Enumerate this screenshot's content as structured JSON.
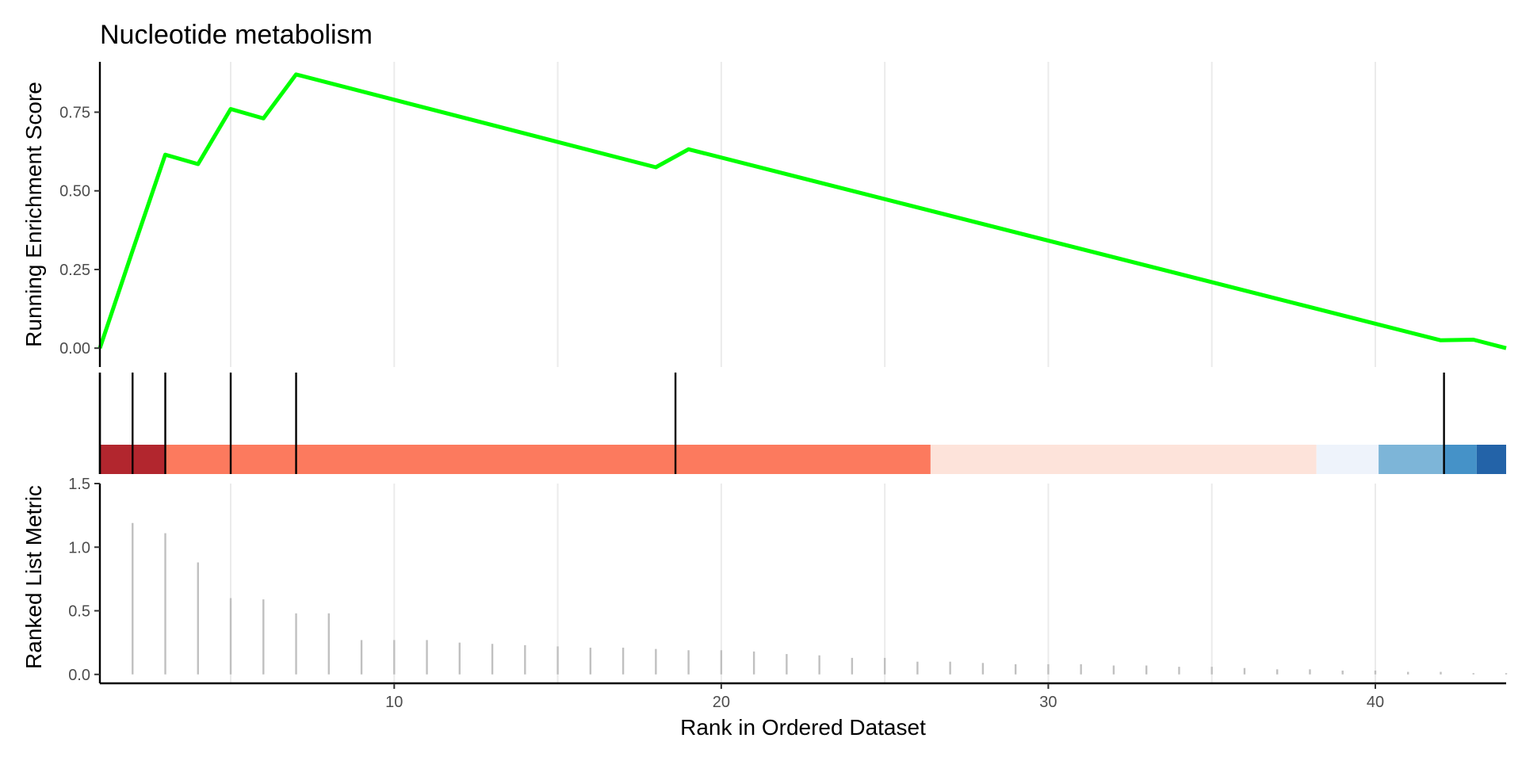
{
  "chart_data": {
    "type": "line",
    "title": "Nucleotide metabolism",
    "xlabel": "Rank in Ordered Dataset",
    "xlim": [
      1,
      44
    ],
    "x_ticks": [
      10,
      20,
      30,
      40
    ],
    "grid": "vertical major + minor",
    "enrichment": {
      "ylabel": "Running Enrichment Score",
      "ylim": [
        -0.06,
        0.91
      ],
      "y_ticks": [
        0.0,
        0.25,
        0.5,
        0.75
      ],
      "y_tick_labels": [
        "0.00",
        "0.25",
        "0.50",
        "0.75"
      ],
      "line_color": "#00ff00",
      "x": [
        1,
        2,
        3,
        4,
        5,
        6,
        7,
        18,
        19,
        42,
        43,
        44
      ],
      "y": [
        0.0,
        0.31,
        0.615,
        0.585,
        0.76,
        0.73,
        0.87,
        0.575,
        0.632,
        0.025,
        0.027,
        0.0
      ]
    },
    "hits": {
      "x": [
        1,
        2,
        3,
        5,
        7,
        18.6,
        42.1
      ],
      "color": "#000000"
    },
    "color_bar": {
      "segments": [
        {
          "from": 1,
          "to": 3,
          "color": "#b2262e"
        },
        {
          "from": 3,
          "to": 26.4,
          "color": "#fc7a5e"
        },
        {
          "from": 26.4,
          "to": 38.2,
          "color": "#fde3da"
        },
        {
          "from": 38.2,
          "to": 40.1,
          "color": "#eef3fb"
        },
        {
          "from": 40.1,
          "to": 42.1,
          "color": "#7db5d8"
        },
        {
          "from": 42.1,
          "to": 43.1,
          "color": "#4592c8"
        },
        {
          "from": 43.1,
          "to": 44,
          "color": "#2363a8"
        }
      ]
    },
    "ranked_metric": {
      "ylabel": "Ranked List Metric",
      "ylim": [
        -0.07,
        1.5
      ],
      "y_ticks": [
        0.0,
        0.5,
        1.0,
        1.5
      ],
      "y_tick_labels": [
        "0.0",
        "0.5",
        "1.0",
        "1.5"
      ],
      "bar_color": "#c0c0c0",
      "x": [
        2,
        3,
        4,
        5,
        6,
        7,
        8,
        9,
        10,
        11,
        12,
        13,
        14,
        15,
        16,
        17,
        18,
        19,
        20,
        21,
        22,
        23,
        24,
        25,
        26,
        27,
        28,
        29,
        30,
        31,
        32,
        33,
        34,
        35,
        36,
        37,
        38,
        39,
        40,
        41,
        42,
        43,
        44
      ],
      "values": [
        1.19,
        1.11,
        0.88,
        0.6,
        0.59,
        0.48,
        0.48,
        0.27,
        0.27,
        0.27,
        0.25,
        0.24,
        0.23,
        0.22,
        0.21,
        0.21,
        0.2,
        0.19,
        0.19,
        0.18,
        0.16,
        0.15,
        0.13,
        0.13,
        0.1,
        0.1,
        0.09,
        0.08,
        0.08,
        0.08,
        0.07,
        0.07,
        0.06,
        0.06,
        0.05,
        0.04,
        0.04,
        0.03,
        0.03,
        0.02,
        0.02,
        0.01,
        0.01
      ]
    }
  }
}
